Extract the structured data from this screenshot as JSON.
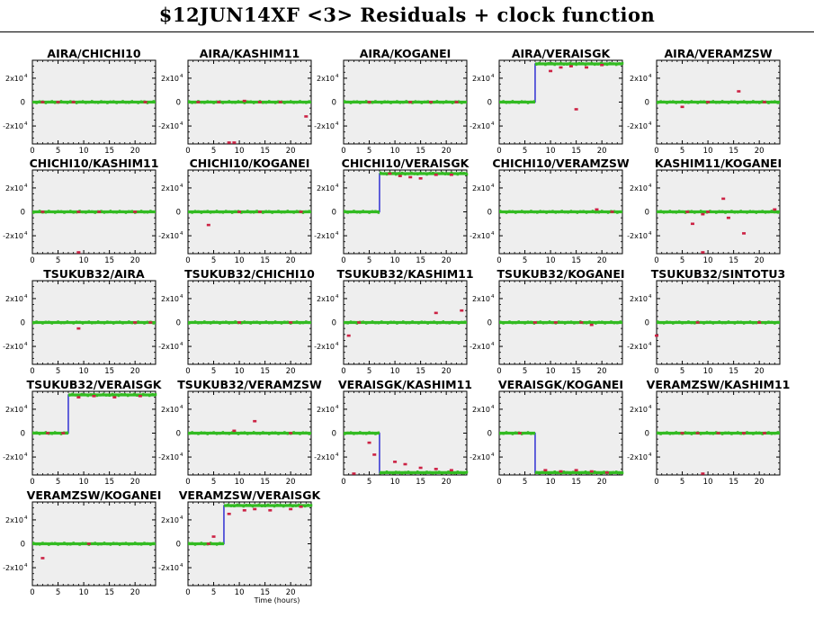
{
  "page": {
    "title": "$12JUN14XF <3> Residuals + clock function"
  },
  "axes": {
    "ytick_labels": [
      "2x10",
      "0",
      "-2x10"
    ],
    "ytick_exponent": "4",
    "xtick_labels": [
      "0",
      "5",
      "10",
      "15",
      "20"
    ],
    "xlabel": "Time (hours)"
  },
  "colors": {
    "panel_bg": "#eeeeee",
    "residual": "#33bb22",
    "outlier": "#cc2244",
    "clock": "#0000cc"
  },
  "chart_data": [
    {
      "type": "scatter",
      "title": "AIRA/CHICHI10",
      "xlim": [
        0,
        24
      ],
      "ylim": [
        -35000,
        35000
      ],
      "clock": [
        [
          0,
          0
        ],
        [
          24,
          0
        ]
      ],
      "outliers": [
        [
          2,
          0
        ],
        [
          5,
          0
        ],
        [
          8,
          0
        ],
        [
          22,
          0
        ]
      ]
    },
    {
      "type": "scatter",
      "title": "AIRA/KASHIM11",
      "xlim": [
        0,
        24
      ],
      "ylim": [
        -35000,
        35000
      ],
      "clock": [
        [
          0,
          0
        ],
        [
          24,
          0
        ]
      ],
      "outliers": [
        [
          2,
          0
        ],
        [
          6,
          0
        ],
        [
          11,
          1000
        ],
        [
          14,
          0
        ],
        [
          18,
          0
        ],
        [
          23,
          -12000
        ],
        [
          8,
          -35000
        ],
        [
          9,
          -35000
        ]
      ]
    },
    {
      "type": "scatter",
      "title": "AIRA/KOGANEI",
      "xlim": [
        0,
        24
      ],
      "ylim": [
        -35000,
        35000
      ],
      "clock": [
        [
          0,
          0
        ],
        [
          24,
          0
        ]
      ],
      "outliers": [
        [
          5,
          0
        ],
        [
          13,
          0
        ],
        [
          17,
          0
        ],
        [
          22,
          0
        ]
      ]
    },
    {
      "type": "scatter",
      "title": "AIRA/VERAISGK",
      "xlim": [
        0,
        24
      ],
      "ylim": [
        -35000,
        35000
      ],
      "clock": [
        [
          0,
          0
        ],
        [
          7,
          0
        ],
        [
          7,
          32000
        ],
        [
          24,
          32000
        ]
      ],
      "outliers": [
        [
          10,
          26000
        ],
        [
          12,
          29000
        ],
        [
          14,
          30000
        ],
        [
          17,
          29000
        ],
        [
          20,
          31000
        ],
        [
          15,
          -6000
        ]
      ]
    },
    {
      "type": "scatter",
      "title": "AIRA/VERAMZSW",
      "xlim": [
        0,
        24
      ],
      "ylim": [
        -35000,
        35000
      ],
      "clock": [
        [
          0,
          0
        ],
        [
          24,
          0
        ]
      ],
      "outliers": [
        [
          5,
          -4000
        ],
        [
          10,
          0
        ],
        [
          16,
          9000
        ],
        [
          21,
          0
        ]
      ]
    },
    {
      "type": "scatter",
      "title": "CHICHI10/KASHIM11",
      "xlim": [
        0,
        24
      ],
      "ylim": [
        -35000,
        35000
      ],
      "clock": [
        [
          0,
          0
        ],
        [
          24,
          0
        ]
      ],
      "outliers": [
        [
          2,
          0
        ],
        [
          9,
          0
        ],
        [
          13,
          0
        ],
        [
          20,
          0
        ],
        [
          9,
          -35000
        ]
      ]
    },
    {
      "type": "scatter",
      "title": "CHICHI10/KOGANEI",
      "xlim": [
        0,
        24
      ],
      "ylim": [
        -35000,
        35000
      ],
      "clock": [
        [
          0,
          0
        ],
        [
          24,
          0
        ]
      ],
      "outliers": [
        [
          4,
          -11000
        ],
        [
          10,
          0
        ],
        [
          14,
          0
        ],
        [
          22,
          0
        ]
      ]
    },
    {
      "type": "scatter",
      "title": "CHICHI10/VERAISGK",
      "xlim": [
        0,
        24
      ],
      "ylim": [
        -35000,
        35000
      ],
      "clock": [
        [
          0,
          0
        ],
        [
          7,
          0
        ],
        [
          7,
          32000
        ],
        [
          24,
          32000
        ]
      ],
      "outliers": [
        [
          9,
          32000
        ],
        [
          11,
          30000
        ],
        [
          13,
          29000
        ],
        [
          15,
          28000
        ],
        [
          18,
          31000
        ],
        [
          21,
          31000
        ]
      ]
    },
    {
      "type": "scatter",
      "title": "CHICHI10/VERAMZSW",
      "xlim": [
        0,
        24
      ],
      "ylim": [
        -35000,
        35000
      ],
      "clock": [
        [
          0,
          0
        ],
        [
          24,
          0
        ]
      ],
      "outliers": [
        [
          19,
          2000
        ],
        [
          22,
          0
        ]
      ]
    },
    {
      "type": "scatter",
      "title": "KASHIM11/KOGANEI",
      "xlim": [
        0,
        24
      ],
      "ylim": [
        -35000,
        35000
      ],
      "clock": [
        [
          0,
          0
        ],
        [
          24,
          0
        ]
      ],
      "outliers": [
        [
          6,
          0
        ],
        [
          7,
          -10000
        ],
        [
          9,
          -2000
        ],
        [
          10,
          0
        ],
        [
          13,
          11000
        ],
        [
          14,
          -5000
        ],
        [
          17,
          -18000
        ],
        [
          23,
          2000
        ],
        [
          9,
          -35000
        ]
      ]
    },
    {
      "type": "scatter",
      "title": "TSUKUB32/AIRA",
      "xlim": [
        0,
        24
      ],
      "ylim": [
        -35000,
        35000
      ],
      "clock": [
        [
          0,
          0
        ],
        [
          24,
          0
        ]
      ],
      "outliers": [
        [
          9,
          -5000
        ],
        [
          20,
          0
        ],
        [
          23,
          0
        ]
      ]
    },
    {
      "type": "scatter",
      "title": "TSUKUB32/CHICHI10",
      "xlim": [
        0,
        24
      ],
      "ylim": [
        -35000,
        35000
      ],
      "clock": [
        [
          0,
          0
        ],
        [
          24,
          0
        ]
      ],
      "outliers": [
        [
          10,
          0
        ],
        [
          20,
          0
        ]
      ]
    },
    {
      "type": "scatter",
      "title": "TSUKUB32/KASHIM11",
      "xlim": [
        0,
        24
      ],
      "ylim": [
        -35000,
        35000
      ],
      "clock": [
        [
          0,
          0
        ],
        [
          24,
          0
        ]
      ],
      "outliers": [
        [
          1,
          -11000
        ],
        [
          3,
          0
        ],
        [
          18,
          8000
        ],
        [
          23,
          10000
        ]
      ]
    },
    {
      "type": "scatter",
      "title": "TSUKUB32/KOGANEI",
      "xlim": [
        0,
        24
      ],
      "ylim": [
        -35000,
        35000
      ],
      "clock": [
        [
          0,
          0
        ],
        [
          24,
          0
        ]
      ],
      "outliers": [
        [
          7,
          0
        ],
        [
          11,
          0
        ],
        [
          16,
          0
        ],
        [
          18,
          -2000
        ]
      ]
    },
    {
      "type": "scatter",
      "title": "TSUKUB32/SINTOTU3",
      "xlim": [
        0,
        24
      ],
      "ylim": [
        -35000,
        35000
      ],
      "clock": [
        [
          0,
          0
        ],
        [
          24,
          0
        ]
      ],
      "outliers": [
        [
          0,
          -11000
        ],
        [
          8,
          0
        ],
        [
          20,
          0
        ]
      ]
    },
    {
      "type": "scatter",
      "title": "TSUKUB32/VERAISGK",
      "xlim": [
        0,
        24
      ],
      "ylim": [
        -35000,
        35000
      ],
      "clock": [
        [
          0,
          0
        ],
        [
          7,
          0
        ],
        [
          7,
          32000
        ],
        [
          24,
          32000
        ]
      ],
      "outliers": [
        [
          3,
          0
        ],
        [
          6,
          0
        ],
        [
          9,
          30000
        ],
        [
          12,
          31000
        ],
        [
          16,
          30000
        ],
        [
          21,
          31000
        ]
      ]
    },
    {
      "type": "scatter",
      "title": "TSUKUB32/VERAMZSW",
      "xlim": [
        0,
        24
      ],
      "ylim": [
        -35000,
        35000
      ],
      "clock": [
        [
          0,
          0
        ],
        [
          24,
          0
        ]
      ],
      "outliers": [
        [
          9,
          2000
        ],
        [
          13,
          10000
        ],
        [
          20,
          0
        ]
      ]
    },
    {
      "type": "scatter",
      "title": "VERAISGK/KASHIM11",
      "xlim": [
        0,
        24
      ],
      "ylim": [
        -35000,
        35000
      ],
      "clock": [
        [
          0,
          0
        ],
        [
          7,
          0
        ],
        [
          7,
          -33000
        ],
        [
          24,
          -33000
        ]
      ],
      "outliers": [
        [
          5,
          -8000
        ],
        [
          6,
          -18000
        ],
        [
          10,
          -24000
        ],
        [
          12,
          -26000
        ],
        [
          15,
          -29000
        ],
        [
          18,
          -30000
        ],
        [
          21,
          -31000
        ],
        [
          2,
          -35000
        ]
      ]
    },
    {
      "type": "scatter",
      "title": "VERAISGK/KOGANEI",
      "xlim": [
        0,
        24
      ],
      "ylim": [
        -35000,
        35000
      ],
      "clock": [
        [
          0,
          0
        ],
        [
          7,
          0
        ],
        [
          7,
          -33000
        ],
        [
          24,
          -33000
        ]
      ],
      "outliers": [
        [
          4,
          0
        ],
        [
          9,
          -31000
        ],
        [
          12,
          -32000
        ],
        [
          15,
          -31000
        ],
        [
          18,
          -32000
        ],
        [
          21,
          -33000
        ]
      ]
    },
    {
      "type": "scatter",
      "title": "VERAMZSW/KASHIM11",
      "xlim": [
        0,
        24
      ],
      "ylim": [
        -35000,
        35000
      ],
      "clock": [
        [
          0,
          0
        ],
        [
          24,
          0
        ]
      ],
      "outliers": [
        [
          5,
          0
        ],
        [
          8,
          0
        ],
        [
          12,
          0
        ],
        [
          17,
          0
        ],
        [
          21,
          0
        ],
        [
          9,
          -35000
        ]
      ]
    },
    {
      "type": "scatter",
      "title": "VERAMZSW/KOGANEI",
      "xlim": [
        0,
        24
      ],
      "ylim": [
        -35000,
        35000
      ],
      "clock": [
        [
          0,
          0
        ],
        [
          24,
          0
        ]
      ],
      "outliers": [
        [
          2,
          -12000
        ],
        [
          11,
          0
        ]
      ]
    },
    {
      "type": "scatter",
      "title": "VERAMZSW/VERAISGK",
      "xlim": [
        0,
        24
      ],
      "ylim": [
        -35000,
        35000
      ],
      "clock": [
        [
          0,
          0
        ],
        [
          7,
          0
        ],
        [
          7,
          32000
        ],
        [
          24,
          32000
        ]
      ],
      "outliers": [
        [
          4,
          0
        ],
        [
          5,
          6000
        ],
        [
          8,
          25000
        ],
        [
          11,
          28000
        ],
        [
          13,
          29000
        ],
        [
          16,
          28000
        ],
        [
          20,
          29000
        ],
        [
          22,
          31000
        ]
      ]
    }
  ]
}
